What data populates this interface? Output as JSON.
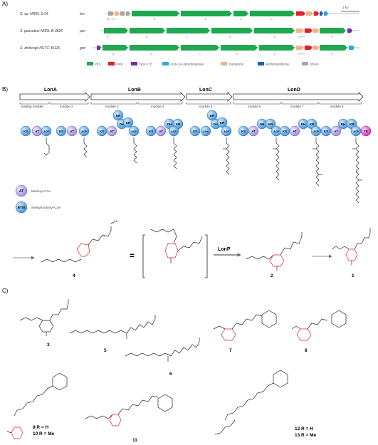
{
  "panels": {
    "a": "A)",
    "b": "B)",
    "c": "C)"
  },
  "scale_label": "3 kb",
  "clusters": [
    {
      "organism": "S. sp. NRRL S-54",
      "name": "lon"
    },
    {
      "organism": "S. peucetius NRRL B-3826",
      "name": "pcn"
    },
    {
      "organism": "S. zhihengii NCTC 39115",
      "name": "gon"
    }
  ],
  "legend": [
    {
      "label": "PKS",
      "color": "#1fa84f"
    },
    {
      "label": "P450",
      "color": "#e31e24"
    },
    {
      "label": "Type II TE",
      "color": "#7030a0"
    },
    {
      "label": "Acyl-CoA dehydrogenase",
      "color": "#27aae1"
    },
    {
      "label": "Transporter",
      "color": "#f4b183"
    },
    {
      "label": "Methyltransferase",
      "color": "#1f5fa8"
    },
    {
      "label": "Others",
      "color": "#a6a6a6"
    }
  ],
  "proteins": [
    "LonA",
    "LonB",
    "LonC",
    "LonD"
  ],
  "modules": [
    "loading module",
    "module 2",
    "module 3",
    "module 4",
    "module 5",
    "module 6",
    "module 7",
    "module 8"
  ],
  "domains": {
    "KS": "KS",
    "AT": "AT",
    "ATm": "ATm",
    "ACP": "ACP",
    "DH": "DH",
    "KR": "KR",
    "ER": "ER",
    "TE": "TE"
  },
  "key": [
    {
      "domain": "AT",
      "label": "Malonyl-CoA"
    },
    {
      "domain": "ATm",
      "label": "Methylmalonyl-CoA"
    }
  ],
  "enzyme": "LonP",
  "compounds": {
    "c1": "1",
    "c2": "2",
    "c3": "3",
    "c4": "4",
    "c5": "5",
    "c6": "6",
    "c7": "7",
    "c8": "8",
    "c11": "11",
    "c9_10a": "9 R = H",
    "c9_10b": "10 R = Me",
    "c12_13a": "12 R = H",
    "c12_13b": "13 R = Me"
  },
  "colors": {
    "accent": "#e31e24",
    "domain_blue": "#4da3e8",
    "domain_purple": "#b9a7e6",
    "te_magenta": "#e040c8"
  }
}
